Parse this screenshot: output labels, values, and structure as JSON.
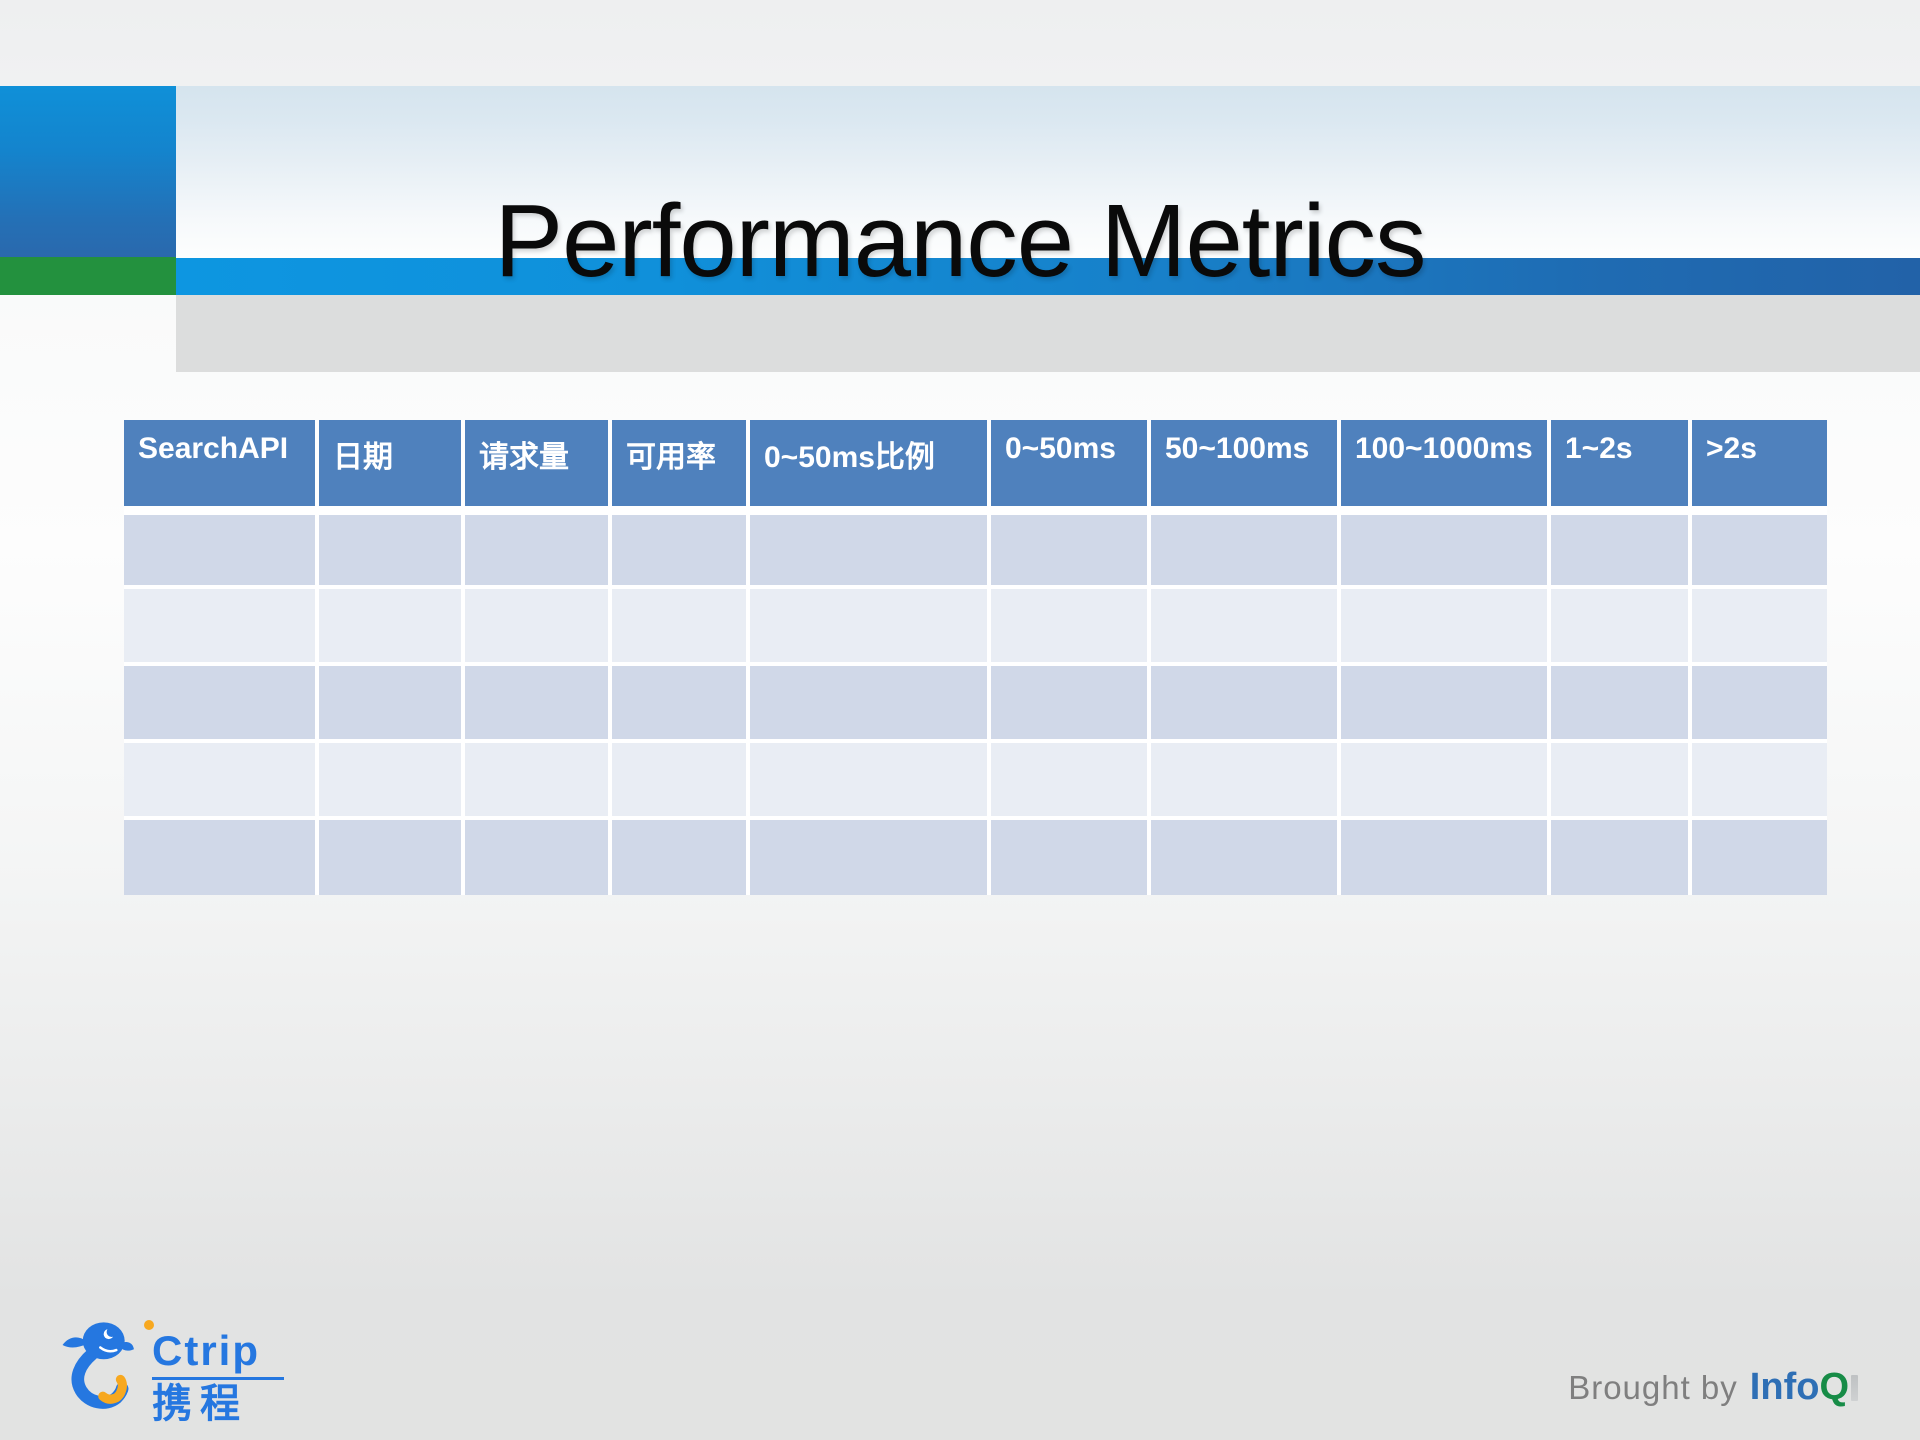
{
  "slide_title": "Performance Metrics",
  "table": {
    "headers": [
      "SearchAPI",
      "日期",
      "请求量",
      "可用率",
      "0~50ms比例",
      "0~50ms",
      "50~100ms",
      "100~1000ms",
      "1~2s",
      ">2s"
    ],
    "rows": [
      [
        "",
        "",
        "",
        "",
        "",
        "",
        "",
        "",
        "",
        ""
      ],
      [
        "",
        "",
        "",
        "",
        "",
        "",
        "",
        "",
        "",
        ""
      ],
      [
        "",
        "",
        "",
        "",
        "",
        "",
        "",
        "",
        "",
        ""
      ],
      [
        "",
        "",
        "",
        "",
        "",
        "",
        "",
        "",
        "",
        ""
      ],
      [
        "",
        "",
        "",
        "",
        "",
        "",
        "",
        "",
        "",
        ""
      ]
    ]
  },
  "footer": {
    "brand": {
      "latin": "Ctrip",
      "chinese": "携程"
    },
    "credit": {
      "prefix": "Brought by",
      "brand_blue": "Info",
      "brand_green": "Q"
    }
  },
  "colors": {
    "table_header_bg": "#4F81BD",
    "row_band_dark": "#D0D8E8",
    "row_band_light": "#E9EDF4",
    "accent_blue_bright": "#0E93DC",
    "accent_blue_deep": "#2262A8",
    "accent_green": "#23913E",
    "ctrip_blue": "#2577E0",
    "ctrip_orange": "#F7A81F",
    "infoq_blue": "#2E6FB5",
    "infoq_green": "#178C47",
    "credit_gray": "#7F7F7F"
  }
}
